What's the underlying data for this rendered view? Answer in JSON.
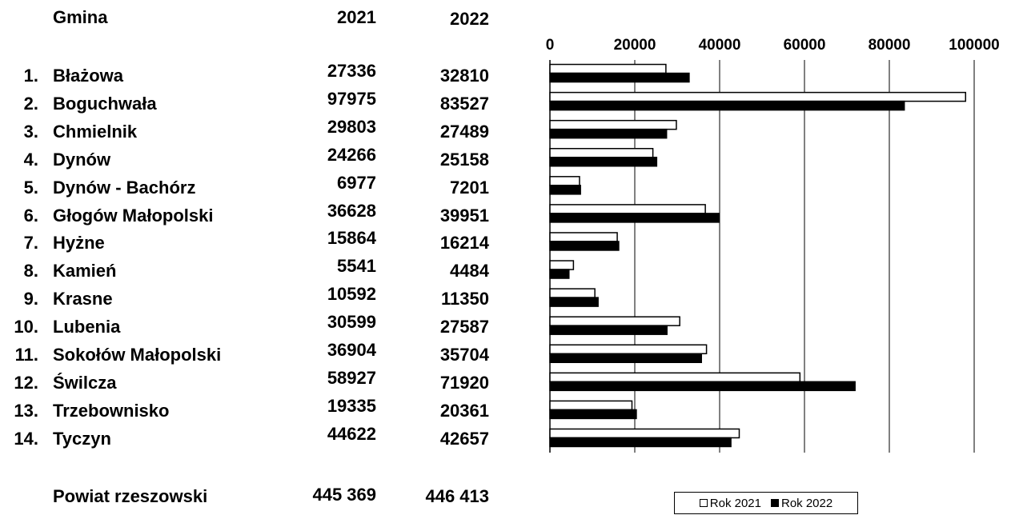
{
  "table": {
    "header_gmina": "Gmina",
    "header_year1": "2021",
    "header_year2": "2022",
    "rows": [
      {
        "num": "1.",
        "name": "Błażowa",
        "v2021": "27336",
        "v2022": "32810"
      },
      {
        "num": "2.",
        "name": "Boguchwała",
        "v2021": "97975",
        "v2022": "83527"
      },
      {
        "num": "3.",
        "name": "Chmielnik",
        "v2021": "29803",
        "v2022": "27489"
      },
      {
        "num": "4.",
        "name": "Dynów",
        "v2021": "24266",
        "v2022": "25158"
      },
      {
        "num": "5.",
        "name": "Dynów - Bachórz",
        "v2021": "6977",
        "v2022": "7201"
      },
      {
        "num": "6.",
        "name": "Głogów Małopolski",
        "v2021": "36628",
        "v2022": "39951"
      },
      {
        "num": "7.",
        "name": "Hyżne",
        "v2021": "15864",
        "v2022": "16214"
      },
      {
        "num": "8.",
        "name": "Kamień",
        "v2021": "5541",
        "v2022": "4484"
      },
      {
        "num": "9.",
        "name": "Krasne",
        "v2021": "10592",
        "v2022": "11350"
      },
      {
        "num": "10.",
        "name": "Lubenia",
        "v2021": "30599",
        "v2022": "27587"
      },
      {
        "num": "11.",
        "name": "Sokołów Małopolski",
        "v2021": "36904",
        "v2022": "35704"
      },
      {
        "num": "12.",
        "name": "Świlcza",
        "v2021": "58927",
        "v2022": "71920"
      },
      {
        "num": "13.",
        "name": "Trzebownisko",
        "v2021": "19335",
        "v2022": "20361"
      },
      {
        "num": "14.",
        "name": "Tyczyn",
        "v2021": "44622",
        "v2022": "42657"
      }
    ],
    "total_label": "Powiat rzeszowski",
    "total_2021": "445 369",
    "total_2022": "446 413"
  },
  "chart_data": {
    "type": "bar",
    "orientation": "horizontal",
    "categories": [
      "Błażowa",
      "Boguchwała",
      "Chmielnik",
      "Dynów",
      "Dynów - Bachórz",
      "Głogów Małopolski",
      "Hyżne",
      "Kamień",
      "Krasne",
      "Lubenia",
      "Sokołów Małopolski",
      "Świlcza",
      "Trzebownisko",
      "Tyczyn"
    ],
    "series": [
      {
        "name": "Rok 2021",
        "color": "#ffffff",
        "values": [
          27336,
          97975,
          29803,
          24266,
          6977,
          36628,
          15864,
          5541,
          10592,
          30599,
          36904,
          58927,
          19335,
          44622
        ]
      },
      {
        "name": "Rok 2022",
        "color": "#000000",
        "values": [
          32810,
          83527,
          27489,
          25158,
          7201,
          39951,
          16214,
          4484,
          11350,
          27587,
          35704,
          71920,
          20361,
          42657
        ]
      }
    ],
    "xlim": [
      0,
      100000
    ],
    "xticks": [
      "0",
      "20000",
      "40000",
      "60000",
      "80000",
      "100000"
    ],
    "tick_values": [
      0,
      20000,
      40000,
      60000,
      80000,
      100000
    ],
    "grid": "vertical",
    "axis_position": "top",
    "legend_position": "bottom"
  }
}
